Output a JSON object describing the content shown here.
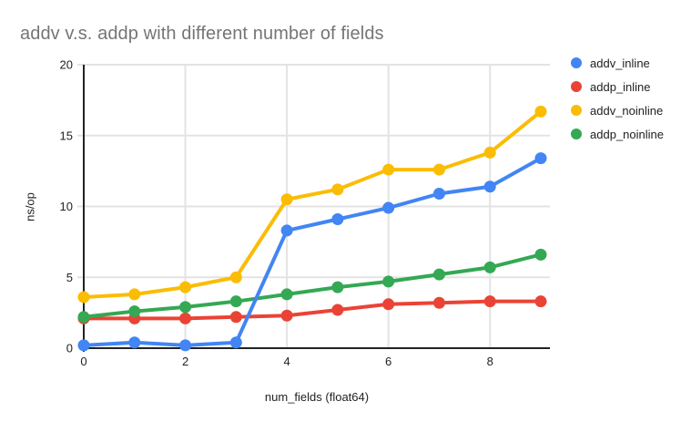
{
  "title": "addv v.s. addp with different number of fields",
  "chart_data": {
    "type": "line",
    "title": "addv v.s. addp with different number of fields",
    "xlabel": "num_fields (float64)",
    "ylabel": "ns/op",
    "x": [
      0,
      1,
      2,
      3,
      4,
      5,
      6,
      7,
      8,
      9
    ],
    "xlim": [
      0,
      9.2
    ],
    "ylim": [
      0,
      20
    ],
    "xticks": [
      0,
      2,
      4,
      6,
      8
    ],
    "yticks": [
      0,
      5,
      10,
      15,
      20
    ],
    "grid": true,
    "legend_position": "right",
    "series": [
      {
        "name": "addv_inline",
        "color": "#4285F4",
        "values": [
          0.2,
          0.4,
          0.2,
          0.4,
          8.3,
          9.1,
          9.9,
          10.9,
          11.4,
          13.4
        ]
      },
      {
        "name": "addp_inline",
        "color": "#EA4335",
        "values": [
          2.1,
          2.1,
          2.1,
          2.2,
          2.3,
          2.7,
          3.1,
          3.2,
          3.3,
          3.3
        ]
      },
      {
        "name": "addv_noinline",
        "color": "#FBBC04",
        "values": [
          3.6,
          3.8,
          4.3,
          5.0,
          10.5,
          11.2,
          12.6,
          12.6,
          13.8,
          16.7
        ]
      },
      {
        "name": "addp_noinline",
        "color": "#34A853",
        "values": [
          2.2,
          2.6,
          2.9,
          3.3,
          3.8,
          4.3,
          4.7,
          5.2,
          5.7,
          6.6
        ]
      }
    ]
  },
  "colors": {
    "grid": "#e3e3e3",
    "axis": "#222222",
    "tick_label": "#222222",
    "title_text": "#757575"
  }
}
